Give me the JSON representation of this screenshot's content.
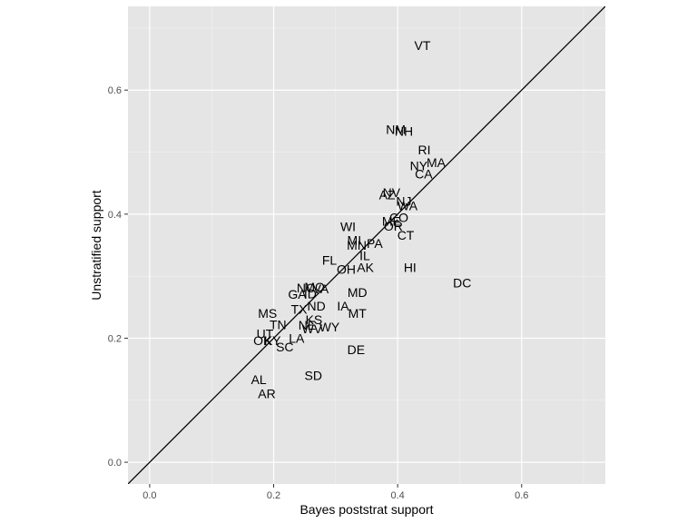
{
  "chart_data": {
    "type": "scatter",
    "title": "",
    "xlabel": "Bayes poststrat support",
    "ylabel": "Unstratified support",
    "xlim": [
      -0.035,
      0.735
    ],
    "ylim": [
      -0.035,
      0.735
    ],
    "x_ticks": [
      0.0,
      0.2,
      0.4,
      0.6
    ],
    "y_ticks": [
      0.0,
      0.2,
      0.4,
      0.6
    ],
    "x_tick_labels": [
      "0.0",
      "0.2",
      "0.4",
      "0.6"
    ],
    "y_tick_labels": [
      "0.0",
      "0.2",
      "0.4",
      "0.6"
    ],
    "grid": true,
    "reference_line": {
      "slope": 1,
      "intercept": 0
    },
    "colors": {
      "panel": "#e5e5e5",
      "grid_major": "#ffffff",
      "grid_minor": "#f2f2f2",
      "line": "#000000",
      "text": "#000000",
      "tick_text": "#4d4d4d"
    },
    "points": [
      {
        "label": "VT",
        "x": 0.44,
        "y": 0.672
      },
      {
        "label": "NM",
        "x": 0.397,
        "y": 0.537
      },
      {
        "label": "NH",
        "x": 0.41,
        "y": 0.534
      },
      {
        "label": "RI",
        "x": 0.443,
        "y": 0.504
      },
      {
        "label": "MA",
        "x": 0.462,
        "y": 0.483
      },
      {
        "label": "NY",
        "x": 0.434,
        "y": 0.478
      },
      {
        "label": "CA",
        "x": 0.442,
        "y": 0.465
      },
      {
        "label": "NV",
        "x": 0.39,
        "y": 0.435
      },
      {
        "label": "AZ",
        "x": 0.383,
        "y": 0.431
      },
      {
        "label": "NJ",
        "x": 0.41,
        "y": 0.421
      },
      {
        "label": "WA",
        "x": 0.416,
        "y": 0.414
      },
      {
        "label": "CO",
        "x": 0.402,
        "y": 0.395
      },
      {
        "label": "ME",
        "x": 0.39,
        "y": 0.389
      },
      {
        "label": "OR",
        "x": 0.393,
        "y": 0.381
      },
      {
        "label": "CT",
        "x": 0.413,
        "y": 0.366
      },
      {
        "label": "WI",
        "x": 0.32,
        "y": 0.38
      },
      {
        "label": "MI",
        "x": 0.33,
        "y": 0.358
      },
      {
        "label": "MN",
        "x": 0.334,
        "y": 0.35
      },
      {
        "label": "PA",
        "x": 0.363,
        "y": 0.353
      },
      {
        "label": "IL",
        "x": 0.347,
        "y": 0.333
      },
      {
        "label": "FL",
        "x": 0.29,
        "y": 0.326
      },
      {
        "label": "OH",
        "x": 0.317,
        "y": 0.311
      },
      {
        "label": "AK",
        "x": 0.348,
        "y": 0.314
      },
      {
        "label": "HI",
        "x": 0.42,
        "y": 0.314
      },
      {
        "label": "DC",
        "x": 0.504,
        "y": 0.289
      },
      {
        "label": "NC",
        "x": 0.252,
        "y": 0.281
      },
      {
        "label": "MO",
        "x": 0.266,
        "y": 0.283
      },
      {
        "label": "VA",
        "x": 0.276,
        "y": 0.28
      },
      {
        "label": "GA",
        "x": 0.238,
        "y": 0.271
      },
      {
        "label": "ID",
        "x": 0.259,
        "y": 0.272
      },
      {
        "label": "MD",
        "x": 0.335,
        "y": 0.274
      },
      {
        "label": "IA",
        "x": 0.312,
        "y": 0.252
      },
      {
        "label": "ND",
        "x": 0.269,
        "y": 0.252
      },
      {
        "label": "TX",
        "x": 0.241,
        "y": 0.247
      },
      {
        "label": "MT",
        "x": 0.335,
        "y": 0.24
      },
      {
        "label": "MS",
        "x": 0.19,
        "y": 0.24
      },
      {
        "label": "KS",
        "x": 0.265,
        "y": 0.23
      },
      {
        "label": "NE",
        "x": 0.254,
        "y": 0.221
      },
      {
        "label": "TN",
        "x": 0.207,
        "y": 0.222
      },
      {
        "label": "WV",
        "x": 0.262,
        "y": 0.215
      },
      {
        "label": "WY",
        "x": 0.29,
        "y": 0.218
      },
      {
        "label": "UT",
        "x": 0.186,
        "y": 0.207
      },
      {
        "label": "OK",
        "x": 0.182,
        "y": 0.196
      },
      {
        "label": "KY",
        "x": 0.198,
        "y": 0.196
      },
      {
        "label": "LA",
        "x": 0.237,
        "y": 0.2
      },
      {
        "label": "SC",
        "x": 0.218,
        "y": 0.186
      },
      {
        "label": "DE",
        "x": 0.333,
        "y": 0.182
      },
      {
        "label": "SD",
        "x": 0.264,
        "y": 0.14
      },
      {
        "label": "AL",
        "x": 0.176,
        "y": 0.133
      },
      {
        "label": "AR",
        "x": 0.189,
        "y": 0.111
      }
    ]
  }
}
